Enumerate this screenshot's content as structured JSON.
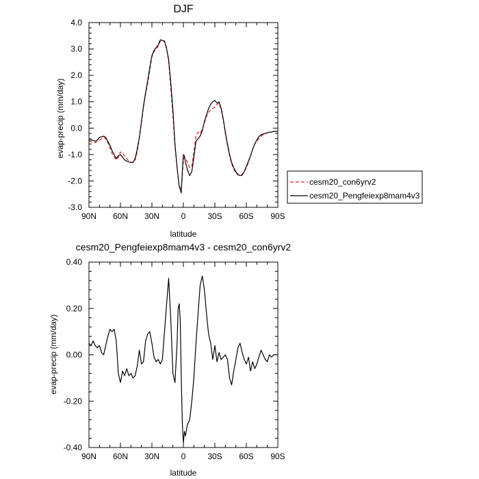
{
  "chart_data": [
    {
      "type": "line",
      "title": "DJF",
      "xlabel": "latitude",
      "ylabel": "evap-precip (mm/day)",
      "xlim": [
        90,
        -90
      ],
      "ylim": [
        -3.0,
        4.0
      ],
      "x_ticks": [
        90,
        60,
        30,
        0,
        -30,
        -60,
        -90
      ],
      "x_tick_labels": [
        "90N",
        "60N",
        "30N",
        "0",
        "30S",
        "60S",
        "90S"
      ],
      "y_ticks": [
        -3,
        -2,
        -1,
        0,
        1,
        2,
        3,
        4
      ],
      "y_tick_labels": [
        "-3.0",
        "-2.0",
        "-1.0",
        "0.0",
        "1.0",
        "2.0",
        "3.0",
        "4.0"
      ],
      "legend_position": "outside-right",
      "series": [
        {
          "name": "cesm20_con6yrv2",
          "color": "#e41a1c",
          "dash": "dashed",
          "x": [
            90,
            87,
            84,
            82,
            80,
            78,
            76,
            74,
            72,
            70,
            68,
            66,
            64,
            62,
            60,
            58,
            56,
            54,
            52,
            50,
            48,
            46,
            44,
            42,
            40,
            38,
            36,
            34,
            32,
            30,
            28,
            26,
            24,
            22,
            20,
            18,
            16,
            14,
            12,
            10,
            8,
            6,
            4,
            2,
            1,
            0,
            -1,
            -2,
            -4,
            -6,
            -8,
            -10,
            -12,
            -14,
            -16,
            -18,
            -20,
            -22,
            -24,
            -26,
            -28,
            -30,
            -32,
            -34,
            -36,
            -38,
            -40,
            -42,
            -44,
            -46,
            -48,
            -50,
            -52,
            -54,
            -56,
            -58,
            -60,
            -62,
            -64,
            -66,
            -68,
            -70,
            -72,
            -74,
            -76,
            -78,
            -80,
            -82,
            -84,
            -86,
            -88,
            -90
          ],
          "y": [
            -0.5,
            -0.52,
            -0.55,
            -0.5,
            -0.45,
            -0.4,
            -0.35,
            -0.4,
            -0.55,
            -0.75,
            -0.95,
            -1.1,
            -1.2,
            -1.1,
            -0.9,
            -0.95,
            -1.05,
            -1.15,
            -1.25,
            -1.3,
            -1.3,
            -1.2,
            -0.9,
            -0.4,
            0.2,
            0.8,
            1.3,
            1.7,
            2.2,
            2.7,
            2.9,
            3.0,
            3.1,
            3.3,
            3.32,
            3.28,
            3.05,
            2.5,
            1.5,
            0.5,
            -0.7,
            -1.5,
            -2.2,
            -2.3,
            -1.8,
            -1.2,
            -1.1,
            -1.15,
            -1.3,
            -1.5,
            -1.45,
            -0.9,
            -0.3,
            -0.15,
            -0.2,
            -0.05,
            0.2,
            0.45,
            0.6,
            0.7,
            0.75,
            0.8,
            0.9,
            0.95,
            0.7,
            0.3,
            -0.2,
            -0.65,
            -1.05,
            -1.35,
            -1.55,
            -1.7,
            -1.77,
            -1.8,
            -1.75,
            -1.65,
            -1.5,
            -1.3,
            -1.05,
            -0.8,
            -0.6,
            -0.5,
            -0.38,
            -0.3,
            -0.25,
            -0.2,
            -0.18,
            -0.15,
            -0.15,
            -0.12,
            -0.12,
            -0.12
          ]
        },
        {
          "name": "cesm20_Pengfeiexp8mam4v3",
          "color": "#000000",
          "dash": "solid",
          "x": [
            90,
            87,
            84,
            82,
            80,
            78,
            76,
            74,
            72,
            70,
            68,
            66,
            64,
            62,
            60,
            58,
            56,
            54,
            52,
            50,
            48,
            46,
            44,
            42,
            40,
            38,
            36,
            34,
            32,
            30,
            28,
            26,
            24,
            22,
            20,
            18,
            16,
            14,
            12,
            10,
            8,
            6,
            4,
            2,
            1,
            0,
            -1,
            -2,
            -4,
            -6,
            -8,
            -10,
            -12,
            -14,
            -16,
            -18,
            -20,
            -22,
            -24,
            -26,
            -28,
            -30,
            -32,
            -34,
            -36,
            -38,
            -40,
            -42,
            -44,
            -46,
            -48,
            -50,
            -52,
            -54,
            -56,
            -58,
            -60,
            -62,
            -64,
            -66,
            -68,
            -70,
            -72,
            -74,
            -76,
            -78,
            -80,
            -82,
            -84,
            -86,
            -88,
            -90
          ],
          "y": [
            -0.45,
            -0.45,
            -0.5,
            -0.45,
            -0.35,
            -0.33,
            -0.3,
            -0.35,
            -0.5,
            -0.65,
            -0.85,
            -1.0,
            -1.15,
            -1.05,
            -1.0,
            -1.1,
            -1.2,
            -1.25,
            -1.28,
            -1.3,
            -1.3,
            -1.15,
            -0.8,
            -0.35,
            0.25,
            0.85,
            1.35,
            1.8,
            2.3,
            2.75,
            2.95,
            3.05,
            3.15,
            3.35,
            3.32,
            3.3,
            3.0,
            2.6,
            1.7,
            0.7,
            -0.6,
            -1.5,
            -2.2,
            -2.45,
            -1.6,
            -1.0,
            -1.05,
            -1.3,
            -1.6,
            -1.8,
            -1.65,
            -1.1,
            -0.5,
            -0.4,
            -0.3,
            -0.1,
            0.25,
            0.5,
            0.75,
            0.9,
            1.0,
            1.05,
            0.95,
            1.0,
            0.75,
            0.35,
            -0.15,
            -0.6,
            -1.0,
            -1.3,
            -1.5,
            -1.65,
            -1.75,
            -1.8,
            -1.78,
            -1.65,
            -1.45,
            -1.25,
            -1.05,
            -0.8,
            -0.6,
            -0.45,
            -0.32,
            -0.25,
            -0.22,
            -0.2,
            -0.18,
            -0.15,
            -0.15,
            -0.12,
            -0.12,
            -0.12
          ]
        }
      ]
    },
    {
      "type": "line",
      "title": "cesm20_Pengfeiexp8mam4v3 - cesm20_con6yrv2",
      "xlabel": "latitude",
      "ylabel": "evap-precip (mm/day)",
      "xlim": [
        90,
        -90
      ],
      "ylim": [
        -0.4,
        0.4
      ],
      "x_ticks": [
        90,
        60,
        30,
        0,
        -30,
        -60,
        -90
      ],
      "x_tick_labels": [
        "90N",
        "60N",
        "30N",
        "0",
        "30S",
        "60S",
        "90S"
      ],
      "y_ticks": [
        -0.4,
        -0.2,
        0,
        0.2,
        0.4
      ],
      "y_tick_labels": [
        "-0.40",
        "-0.20",
        "0.00",
        "0.20",
        "0.40"
      ],
      "series": [
        {
          "color": "#000000",
          "dash": "solid",
          "x": [
            90,
            88,
            86,
            84,
            82,
            80,
            78,
            76,
            74,
            72,
            70,
            68,
            66,
            64,
            62,
            60,
            58,
            56,
            54,
            52,
            50,
            48,
            46,
            44,
            42,
            40,
            38,
            36,
            34,
            32,
            30,
            28,
            26,
            24,
            22,
            20,
            18,
            16,
            14,
            12,
            10,
            8,
            6,
            5,
            4,
            3,
            2,
            1,
            0,
            -1,
            -2,
            -3,
            -4,
            -6,
            -8,
            -10,
            -12,
            -14,
            -16,
            -18,
            -20,
            -22,
            -24,
            -26,
            -28,
            -30,
            -32,
            -34,
            -36,
            -38,
            -40,
            -42,
            -44,
            -46,
            -48,
            -50,
            -52,
            -54,
            -56,
            -58,
            -60,
            -62,
            -64,
            -66,
            -68,
            -70,
            -72,
            -74,
            -76,
            -78,
            -80,
            -82,
            -84,
            -86,
            -88,
            -90
          ],
          "y": [
            0.05,
            0.04,
            0.06,
            0.04,
            0.03,
            0.04,
            0.01,
            0.0,
            0.04,
            0.08,
            0.11,
            0.1,
            0.11,
            0.06,
            -0.08,
            -0.12,
            -0.07,
            -0.09,
            -0.06,
            -0.09,
            -0.08,
            -0.1,
            -0.09,
            -0.05,
            0.02,
            -0.04,
            -0.03,
            0.06,
            0.09,
            0.1,
            0.05,
            -0.01,
            -0.03,
            -0.02,
            -0.04,
            -0.02,
            0.1,
            0.22,
            0.33,
            0.15,
            -0.08,
            -0.12,
            0.05,
            0.2,
            0.22,
            0.15,
            -0.1,
            -0.3,
            -0.38,
            -0.33,
            -0.35,
            -0.32,
            -0.3,
            -0.28,
            -0.2,
            -0.1,
            0.05,
            0.18,
            0.3,
            0.34,
            0.28,
            0.18,
            0.09,
            0.05,
            -0.02,
            0.04,
            -0.03,
            0.01,
            -0.02,
            -0.01,
            0.0,
            -0.02,
            -0.1,
            -0.13,
            -0.07,
            -0.02,
            0.03,
            0.05,
            0.01,
            -0.02,
            -0.04,
            -0.01,
            -0.07,
            -0.03,
            -0.06,
            -0.04,
            -0.01,
            0.02,
            0.0,
            -0.02,
            -0.03,
            0.0,
            -0.01,
            0.0,
            0.0,
            0.0
          ]
        }
      ]
    }
  ]
}
